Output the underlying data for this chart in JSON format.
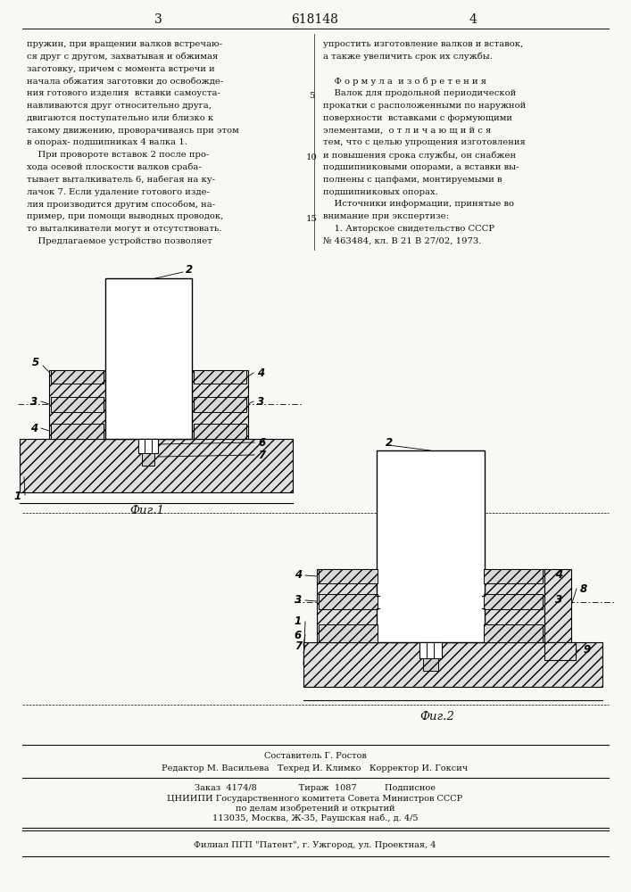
{
  "page_number_left": "3",
  "page_number_center": "618148",
  "page_number_right": "4",
  "left_column_text": [
    "пружин, при вращении валков встречаю-",
    "ся друг с другом, захватывая и обжимая",
    "заготовку, причем с момента встречи и",
    "начала обжатия заготовки до освобожде-",
    "ния готового изделия  вставки самоуста-",
    "навливаются друг относительно друга,",
    "двигаются поступательно или близко к",
    "такому движению, проворачиваясь при этом",
    "в опорах- подшипниках 4 валка 1.",
    "    При провороте вставок 2 после про-",
    "хода осевой плоскости валков сраба-",
    "тывает выталкиватель 6, набегая на ку-",
    "лачок 7. Если удаление готового изде-",
    "лия производится другим способом, на-",
    "пример, при помощи выводных проводок,",
    "то выталкиватели могут и отсутствовать.",
    "    Предлагаемое устройство позволяет"
  ],
  "right_column_text": [
    "упростить изготовление валков и вставок,",
    "а также увеличить срок их службы.",
    "",
    "    Ф о р м у л а  и з о б р е т е н и я",
    "    Валок для продольной периодической",
    "прокатки с расположенными по наружной",
    "поверхности  вставками с формующими",
    "элементами,  о т л и ч а ю щ и й с я",
    "тем, что с целью упрощения изготовления",
    "и повышения срока службы, он снабжен",
    "подшипниковыми опорами, а вставки вы-",
    "полнены с цапфами, монтируемыми в",
    "подшипниковых опорах.",
    "    Источники информации, принятые во",
    "внимание при экспертизе:",
    "    1. Авторское свидетельство СССР",
    "№ 463484, кл. В 21 В 27/02, 1973."
  ],
  "fig1_label": "Фиг.1",
  "fig2_label": "Фиг.2",
  "footer_line1": "Составитель Г. Ростов",
  "footer_line2": "Редактор М. Васильева   Техред И. Климко   Корректор И. Гоксич",
  "footer_line3": "Заказ  4174/8               Тираж  1087          Подписное",
  "footer_line4": "ЦНИИПИ Государственного комитета Совета Министров СССР",
  "footer_line5": "по делам изобретений и открытий",
  "footer_line6": "113035, Москва, Ж-35, Раушская наб., д. 4/5",
  "footer_line7": "Филиал ПГП \"Патент\", г. Ужгород, ул. Проектная, 4",
  "bg_color": "#f8f8f5",
  "text_color": "#111111"
}
